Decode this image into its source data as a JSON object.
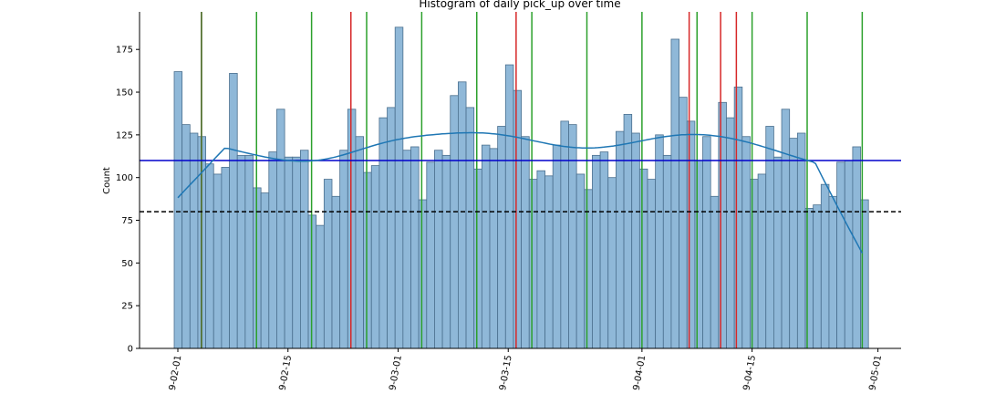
{
  "chart_data": {
    "type": "bar",
    "title": "Histogram of daily pick_up over time",
    "xlabel": "",
    "ylabel": "Count",
    "x_start": "2019-02-01",
    "ylim": [
      0,
      197
    ],
    "yticks": [
      0,
      25,
      50,
      75,
      100,
      125,
      150,
      175
    ],
    "xticks": [
      "2019-02-01",
      "2019-02-15",
      "2019-03-01",
      "2019-03-15",
      "2019-04-01",
      "2019-04-15",
      "2019-05-01"
    ],
    "xtick_labels": [
      "9-02-01",
      "9-02-15",
      "9-03-01",
      "9-03-15",
      "9-04-01",
      "9-04-15",
      "9-05-01"
    ],
    "counts": [
      162,
      131,
      126,
      124,
      108,
      102,
      106,
      161,
      113,
      113,
      94,
      91,
      115,
      140,
      112,
      112,
      116,
      78,
      72,
      99,
      89,
      116,
      140,
      124,
      103,
      107,
      135,
      141,
      188,
      116,
      118,
      87,
      109,
      116,
      113,
      148,
      156,
      141,
      105,
      119,
      117,
      130,
      166,
      151,
      124,
      99,
      104,
      101,
      119,
      133,
      131,
      102,
      93,
      113,
      115,
      100,
      127,
      137,
      126,
      105,
      99,
      125,
      113,
      181,
      147,
      133,
      110,
      124,
      89,
      144,
      135,
      153,
      124,
      99,
      102,
      130,
      112,
      140,
      123,
      126,
      82,
      84,
      96,
      89,
      109,
      110,
      118,
      87
    ],
    "kde_color": "#1f77b4",
    "bar_color": "#8fb8d8",
    "bar_edge_color": "#4a6f8e",
    "hlines": [
      {
        "y": 110,
        "color": "#0000cc",
        "style": "solid"
      },
      {
        "y": 80,
        "color": "#000000",
        "style": "dashed"
      }
    ],
    "green_lines": [
      "2019-02-04",
      "2019-02-11",
      "2019-02-18",
      "2019-02-25",
      "2019-03-04",
      "2019-03-11",
      "2019-03-18",
      "2019-03-25",
      "2019-04-01",
      "2019-04-08",
      "2019-04-15",
      "2019-04-22",
      "2019-04-29"
    ],
    "red_lines": [
      "2019-02-23",
      "2019-03-16",
      "2019-04-07",
      "2019-04-11",
      "2019-04-13"
    ],
    "dark_line": "2019-02-04",
    "green_color": "#2ca02c",
    "red_color": "#d62728",
    "dark_color": "#556b2f"
  }
}
